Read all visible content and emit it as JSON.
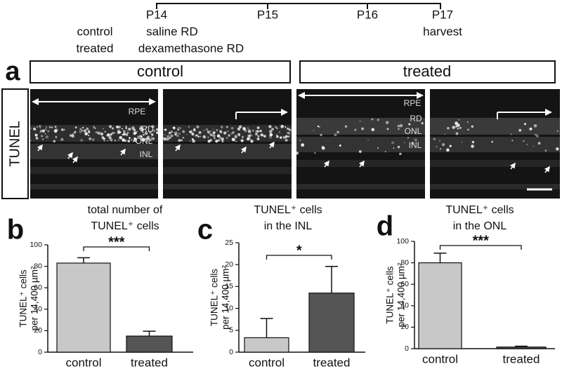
{
  "timeline": {
    "days": [
      "P14",
      "P15",
      "P16",
      "P17"
    ],
    "groups": [
      "control",
      "treated"
    ],
    "treatments": [
      "saline RD",
      "dexamethasone RD"
    ],
    "endpoint": "harvest"
  },
  "panel_a": {
    "label": "a",
    "groups": [
      "control",
      "treated"
    ],
    "stain": "TUNEL",
    "layers": [
      "RPE",
      "RD",
      "ONL",
      "INL"
    ]
  },
  "chart_data": [
    {
      "panel": "b",
      "type": "bar",
      "title": [
        "total number of",
        "TUNEL⁺ cells"
      ],
      "ylabel": [
        "TUNEL⁺ cells",
        "per 14,400 µm²"
      ],
      "categories": [
        "control",
        "treated"
      ],
      "values": [
        83,
        15
      ],
      "errors": [
        5,
        4.5
      ],
      "colors": [
        "#c8c8c8",
        "#555555"
      ],
      "ylim": [
        0,
        100
      ],
      "yticks": [
        0,
        20,
        40,
        60,
        80,
        100
      ],
      "significance": "***"
    },
    {
      "panel": "c",
      "type": "bar",
      "title": [
        "TUNEL⁺ cells",
        "in the INL"
      ],
      "ylabel": [
        "TUNEL⁺ cells",
        "per 14,400 µm²"
      ],
      "categories": [
        "control",
        "treated"
      ],
      "values": [
        3.3,
        13.5
      ],
      "errors": [
        4.4,
        6.1
      ],
      "colors": [
        "#c8c8c8",
        "#555555"
      ],
      "ylim": [
        0,
        25
      ],
      "yticks": [
        0,
        5,
        10,
        15,
        20,
        25
      ],
      "significance": "*"
    },
    {
      "panel": "d",
      "type": "bar",
      "title": [
        "TUNEL⁺ cells",
        "in the ONL"
      ],
      "ylabel": [
        "TUNEL⁺ cells",
        "per 14,400 µm²"
      ],
      "categories": [
        "control",
        "treated"
      ],
      "values": [
        80,
        1.5
      ],
      "errors": [
        9,
        0.8
      ],
      "colors": [
        "#c8c8c8",
        "#555555"
      ],
      "ylim": [
        0,
        100
      ],
      "yticks": [
        0,
        20,
        40,
        60,
        80,
        100
      ],
      "significance": "***"
    }
  ]
}
